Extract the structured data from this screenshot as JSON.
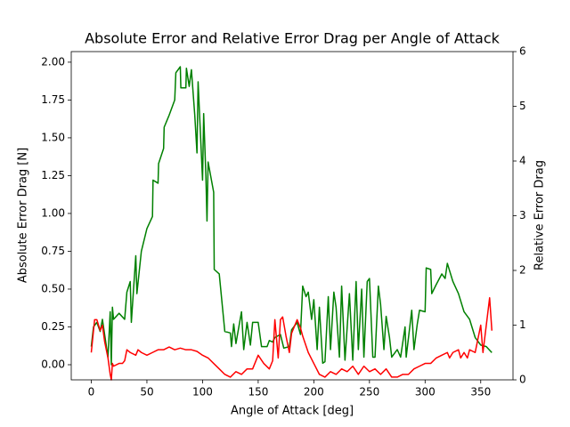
{
  "chart_data": {
    "type": "line",
    "title": "Absolute Error and Relative Error Drag per Angle of Attack",
    "xlabel": "Angle of Attack [deg]",
    "ylabel": "Absolute Error Drag [N]",
    "y2label": "Relative Error Drag",
    "xlim": [
      -18,
      379
    ],
    "ylim": [
      -0.1,
      2.07
    ],
    "y2lim": [
      0,
      6
    ],
    "xticks": [
      0,
      50,
      100,
      150,
      200,
      250,
      300,
      350
    ],
    "yticks": [
      {
        "value": 0,
        "label": "0.00"
      },
      0.25,
      {
        "value": 0.5,
        "label": "0.50"
      },
      0.75,
      {
        "value": 1,
        "label": "1.00"
      },
      1.25,
      {
        "value": 1.5,
        "label": "1.50"
      },
      1.75,
      {
        "value": 2,
        "label": "2.00"
      }
    ],
    "y2ticks": [
      0,
      1,
      2,
      3,
      4,
      5,
      6
    ],
    "series": [
      {
        "name": "Absolute Error Drag [N]",
        "color": "#008000",
        "axis": "y",
        "x": [
          0,
          2,
          5,
          8,
          10,
          12,
          15,
          17,
          18,
          19,
          20,
          25,
          30,
          32,
          35,
          36,
          40,
          41,
          45,
          50,
          55,
          55.5,
          60,
          60.5,
          65,
          65.5,
          70,
          75,
          76,
          80,
          80.5,
          85,
          85.5,
          88,
          90,
          93,
          95,
          96,
          100,
          101,
          103,
          104,
          105,
          110,
          110.5,
          115,
          120,
          125,
          126,
          128,
          130,
          135,
          137,
          140,
          143,
          145,
          150,
          153,
          158,
          160,
          163,
          165,
          170,
          173,
          178,
          180,
          185,
          188,
          190,
          193,
          195,
          198,
          200,
          203,
          205,
          208,
          210,
          213,
          215,
          218,
          220,
          223,
          225,
          228,
          232,
          235,
          238,
          240,
          243,
          245,
          248,
          250,
          253,
          255,
          258,
          260,
          263,
          265,
          268,
          270,
          275,
          278,
          282,
          283,
          288,
          290,
          293,
          295,
          300,
          301,
          305,
          306,
          310,
          315,
          318,
          320,
          325,
          330,
          335,
          340,
          345,
          350,
          355,
          360
        ],
        "values": [
          0.12,
          0.25,
          0.28,
          0.22,
          0.3,
          0.2,
          0.05,
          0.35,
          0.0,
          0.38,
          0.3,
          0.34,
          0.3,
          0.48,
          0.55,
          0.28,
          0.72,
          0.47,
          0.75,
          0.9,
          0.98,
          1.22,
          1.2,
          1.33,
          1.43,
          1.57,
          1.65,
          1.75,
          1.93,
          1.97,
          1.83,
          1.83,
          1.96,
          1.84,
          1.95,
          1.65,
          1.4,
          1.87,
          1.22,
          1.66,
          1.25,
          0.95,
          1.34,
          1.14,
          0.63,
          0.6,
          0.22,
          0.21,
          0.12,
          0.27,
          0.14,
          0.35,
          0.1,
          0.28,
          0.13,
          0.28,
          0.28,
          0.12,
          0.12,
          0.16,
          0.15,
          0.18,
          0.2,
          0.11,
          0.12,
          0.23,
          0.28,
          0.2,
          0.52,
          0.45,
          0.48,
          0.3,
          0.43,
          0.1,
          0.38,
          0.01,
          0.02,
          0.45,
          0.1,
          0.48,
          0.38,
          0.05,
          0.52,
          0.03,
          0.47,
          0.03,
          0.55,
          0.1,
          0.5,
          0.05,
          0.55,
          0.57,
          0.05,
          0.05,
          0.52,
          0.4,
          0.1,
          0.32,
          0.18,
          0.05,
          0.1,
          0.05,
          0.25,
          0.05,
          0.36,
          0.1,
          0.27,
          0.36,
          0.35,
          0.64,
          0.63,
          0.47,
          0.53,
          0.6,
          0.57,
          0.67,
          0.55,
          0.47,
          0.35,
          0.3,
          0.18,
          0.13,
          0.12,
          0.08
        ]
      },
      {
        "name": "Relative Error Drag",
        "color": "#ff0000",
        "axis": "y2",
        "x": [
          0,
          3,
          5,
          8,
          10,
          12,
          15,
          17,
          18,
          19,
          20,
          25,
          28,
          30,
          32,
          35,
          40,
          42,
          45,
          50,
          55,
          60,
          65,
          70,
          75,
          80,
          85,
          90,
          95,
          100,
          105,
          110,
          115,
          120,
          125,
          130,
          135,
          140,
          145,
          150,
          155,
          160,
          163,
          165,
          168,
          170,
          172,
          175,
          178,
          180,
          182,
          185,
          188,
          190,
          195,
          200,
          205,
          210,
          215,
          220,
          225,
          230,
          235,
          240,
          245,
          250,
          255,
          260,
          265,
          270,
          275,
          280,
          285,
          290,
          295,
          300,
          305,
          310,
          315,
          320,
          322,
          325,
          330,
          332,
          335,
          338,
          340,
          345,
          350,
          352,
          355,
          358,
          360
        ],
        "values": [
          0.5,
          1.1,
          1.1,
          0.9,
          1.0,
          0.7,
          0.4,
          0.1,
          0.0,
          0.3,
          0.25,
          0.3,
          0.3,
          0.35,
          0.55,
          0.5,
          0.45,
          0.55,
          0.5,
          0.45,
          0.5,
          0.55,
          0.55,
          0.6,
          0.55,
          0.58,
          0.55,
          0.55,
          0.52,
          0.45,
          0.4,
          0.3,
          0.2,
          0.1,
          0.05,
          0.15,
          0.1,
          0.2,
          0.2,
          0.45,
          0.3,
          0.2,
          0.35,
          1.1,
          0.4,
          1.1,
          1.15,
          0.8,
          0.5,
          0.85,
          0.95,
          1.1,
          0.95,
          0.8,
          0.5,
          0.3,
          0.1,
          0.05,
          0.15,
          0.1,
          0.2,
          0.15,
          0.25,
          0.1,
          0.25,
          0.15,
          0.2,
          0.1,
          0.2,
          0.05,
          0.05,
          0.1,
          0.1,
          0.2,
          0.25,
          0.3,
          0.3,
          0.4,
          0.45,
          0.5,
          0.4,
          0.5,
          0.55,
          0.4,
          0.5,
          0.4,
          0.55,
          0.5,
          1.0,
          0.5,
          1.0,
          1.5,
          0.9
        ]
      }
    ]
  }
}
